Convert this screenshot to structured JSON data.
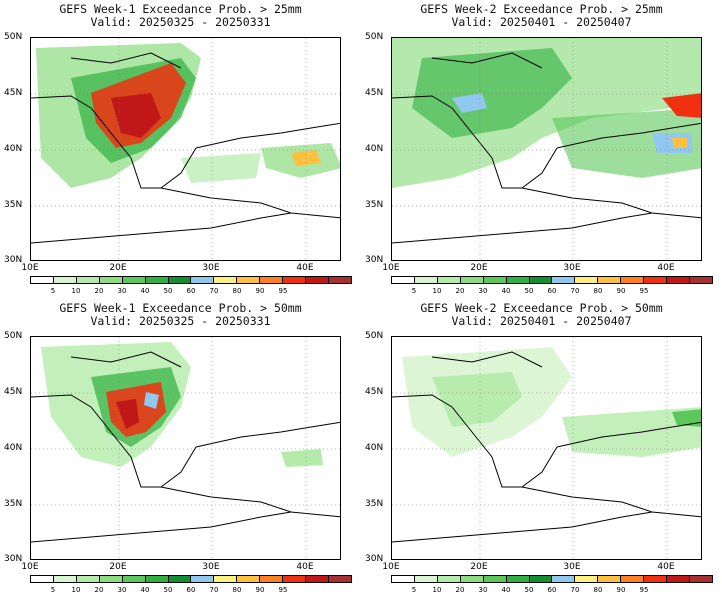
{
  "panels": [
    {
      "title": "GEFS Week-1 Exceedance Prob. > 25mm",
      "valid": "Valid: 20250325 - 20250331",
      "threshold": "25mm",
      "week": 1
    },
    {
      "title": "GEFS Week-2 Exceedance Prob. > 25mm",
      "valid": "Valid: 20250401 - 20250407",
      "threshold": "25mm",
      "week": 2
    },
    {
      "title": "GEFS Week-1 Exceedance Prob. > 50mm",
      "valid": "Valid: 20250325 - 20250331",
      "threshold": "50mm",
      "week": 1
    },
    {
      "title": "GEFS Week-2 Exceedance Prob. > 50mm",
      "valid": "Valid: 20250401 - 20250407",
      "threshold": "50mm",
      "week": 2
    }
  ],
  "lat_labels": [
    "50N",
    "45N",
    "40N",
    "35N",
    "30N"
  ],
  "lon_labels": [
    "10E",
    "20E",
    "30E",
    "40E"
  ],
  "colorbar": {
    "labels": [
      "5",
      "10",
      "20",
      "30",
      "40",
      "50",
      "60",
      "70",
      "80",
      "90",
      "95"
    ],
    "colors": [
      "#ffffff",
      "#d8f5d0",
      "#b4ebaa",
      "#8cdc80",
      "#5cc85a",
      "#30b040",
      "#109030",
      "#90c8f0",
      "#fff080",
      "#ffc040",
      "#ff8020",
      "#f03010",
      "#c01818",
      "#a83030"
    ]
  }
}
